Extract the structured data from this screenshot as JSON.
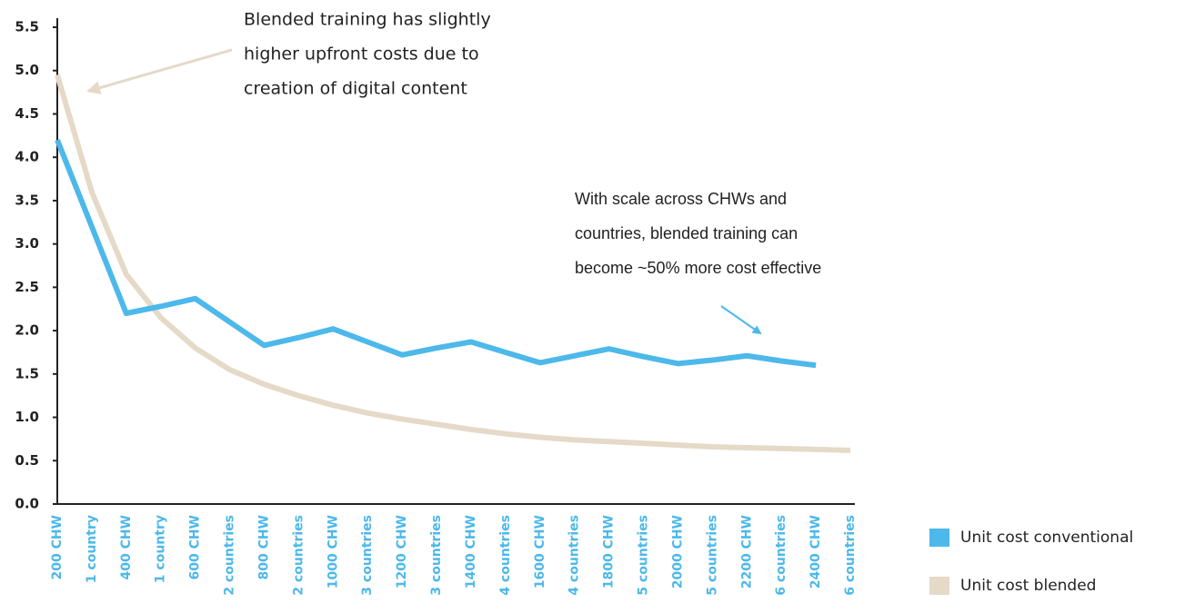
{
  "chart_data": {
    "type": "line",
    "categories": [
      "200 CHW",
      "1 country",
      "400 CHW",
      "1 country",
      "600 CHW",
      "2 countries",
      "800 CHW",
      "2 countries",
      "1000 CHW",
      "3 countries",
      "1200 CHW",
      "3 countries",
      "1400 CHW",
      "4 countries",
      "1600 CHW",
      "4 countries",
      "1800 CHW",
      "5 countries",
      "2000 CHW",
      "5 countries",
      "2200 CHW",
      "6 countries",
      "2400 CHW",
      "6 countries"
    ],
    "series": [
      {
        "name": "Unit cost conventional",
        "color": "#4db8ea",
        "values": [
          4.2,
          3.2,
          2.2,
          2.28,
          2.37,
          2.1,
          1.83,
          1.92,
          2.02,
          1.87,
          1.72,
          1.8,
          1.87,
          1.75,
          1.63,
          1.71,
          1.79,
          1.7,
          1.62,
          1.66,
          1.71,
          1.65,
          1.6,
          null
        ]
      },
      {
        "name": "Unit cost blended",
        "color": "#e5d9c8",
        "values": [
          4.95,
          3.6,
          2.65,
          2.15,
          1.8,
          1.55,
          1.38,
          1.25,
          1.14,
          1.05,
          0.98,
          0.92,
          0.86,
          0.81,
          0.77,
          0.74,
          0.72,
          0.7,
          0.68,
          0.66,
          0.65,
          0.64,
          0.63,
          0.62
        ]
      }
    ],
    "ylim": [
      0,
      5.5
    ],
    "yticks": [
      {
        "value": 0,
        "label": "0.0"
      },
      0.5,
      {
        "value": 1,
        "label": "1.0"
      },
      1.5,
      {
        "value": 2,
        "label": "2.0"
      },
      2.5,
      {
        "value": 3,
        "label": "3.0"
      },
      3.5,
      {
        "value": 4,
        "label": "4.0"
      },
      4.5,
      {
        "value": 5,
        "label": "5.0"
      },
      5.5
    ],
    "annotations": [
      {
        "lines": [
          "Blended training has slightly",
          "higher upfront costs due to",
          "creation of digital content"
        ]
      },
      {
        "lines": [
          "With scale across CHWs and",
          "countries, blended training can",
          "become ~50% more cost effective"
        ]
      }
    ],
    "legend": "lower right"
  }
}
